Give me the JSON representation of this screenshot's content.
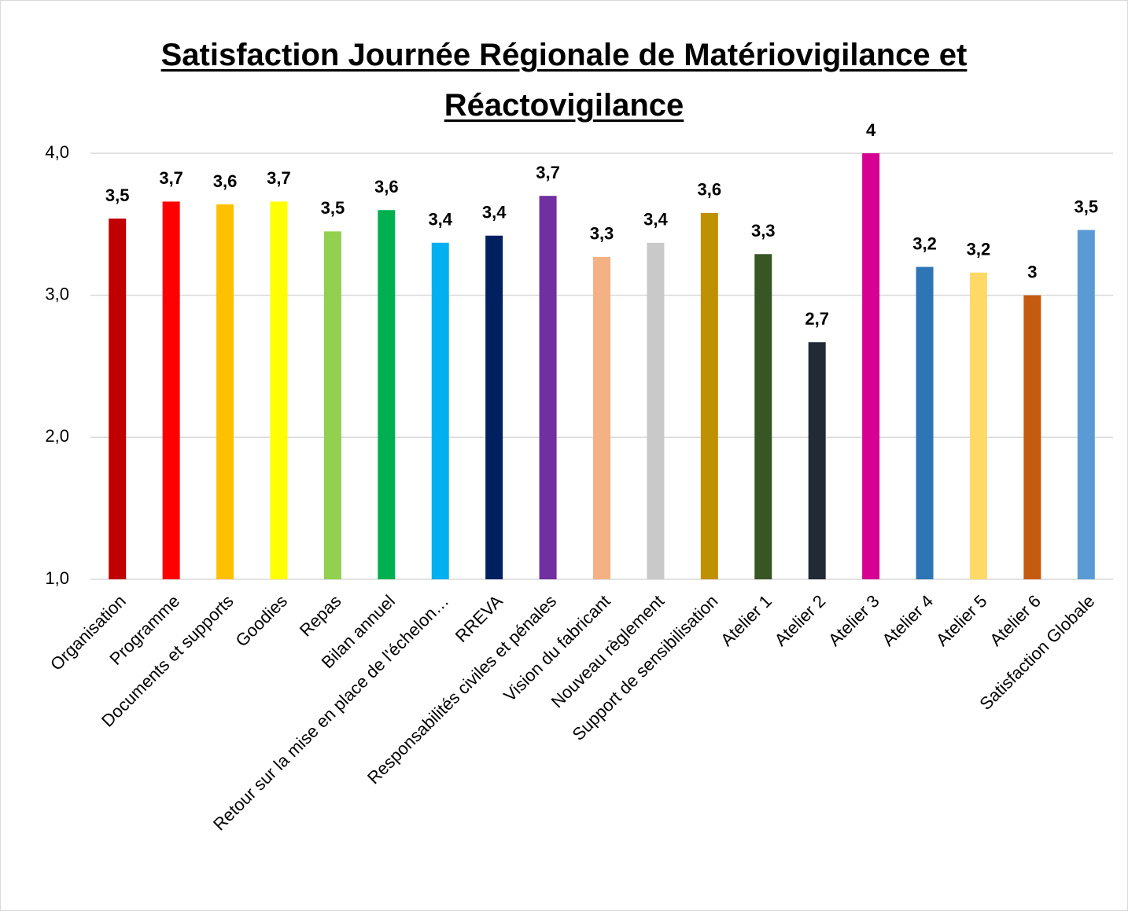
{
  "chart_data": {
    "type": "bar",
    "title": "Satisfaction Journée Régionale de Matériovigilance et Réactovigilance",
    "categories": [
      "Organisation",
      "Programme",
      "Documents et supports",
      "Goodies",
      "Repas",
      "Bilan annuel",
      "Retour sur la mise en place de l'échelon…",
      "RREVA",
      "Responsabilités civiles et pénales",
      "Vision du fabricant",
      "Nouveau règlement",
      "Support de sensibilisation",
      "Atelier 1",
      "Atelier 2",
      "Atelier 3",
      "Atelier 4",
      "Atelier 5",
      "Atelier 6",
      "Satisfaction Globale"
    ],
    "values": [
      3.54,
      3.66,
      3.64,
      3.66,
      3.45,
      3.6,
      3.37,
      3.42,
      3.7,
      3.27,
      3.37,
      3.58,
      3.29,
      2.67,
      4,
      3.2,
      3.16,
      3,
      3.46
    ],
    "value_labels": [
      "3,5",
      "3,7",
      "3,6",
      "3,7",
      "3,5",
      "3,6",
      "3,4",
      "3,4",
      "3,7",
      "3,3",
      "3,4",
      "3,6",
      "3,3",
      "2,7",
      "4",
      "3,2",
      "3,2",
      "3",
      "3,5"
    ],
    "colors": [
      "#c00000",
      "#ff0000",
      "#ffc000",
      "#ffff00",
      "#92d050",
      "#00b050",
      "#00b0f0",
      "#002060",
      "#7030a0",
      "#f4b183",
      "#c9c9c9",
      "#bf9000",
      "#375623",
      "#222a35",
      "#d60093",
      "#2e75b6",
      "#ffd966",
      "#c55a11",
      "#5b9bd5"
    ],
    "ylim": [
      1,
      4
    ],
    "yticks": [
      {
        "value": 1,
        "label": "1,0"
      },
      {
        "value": 2,
        "label": "2,0"
      },
      {
        "value": 3,
        "label": "3,0"
      },
      {
        "value": 4,
        "label": "4,0"
      }
    ],
    "grid": true
  }
}
